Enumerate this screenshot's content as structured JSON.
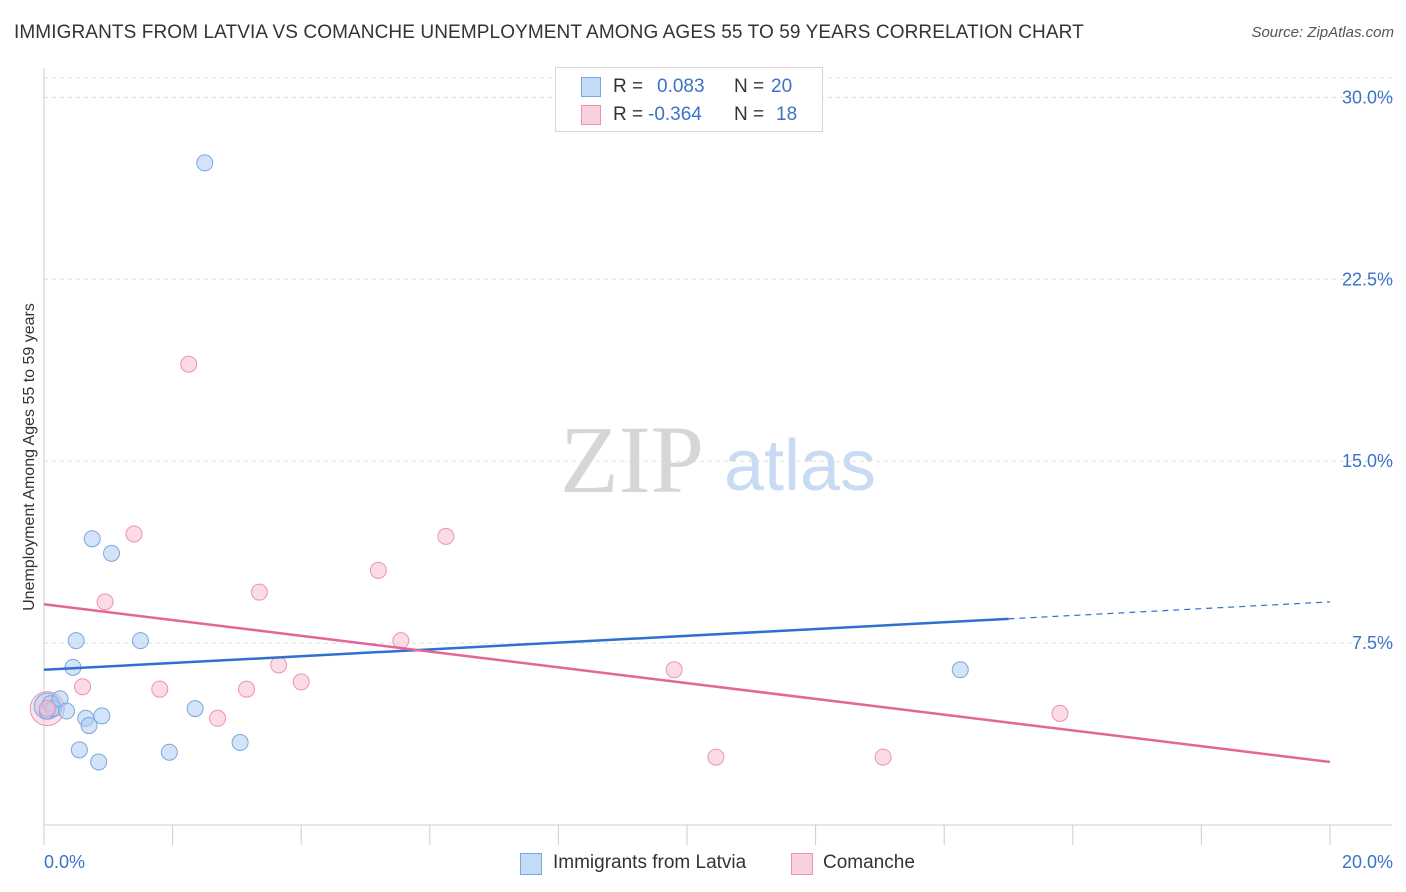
{
  "title": "IMMIGRANTS FROM LATVIA VS COMANCHE UNEMPLOYMENT AMONG AGES 55 TO 59 YEARS CORRELATION CHART",
  "source": "Source: ZipAtlas.com",
  "watermark": {
    "zip": "ZIP",
    "atlas": "atlas"
  },
  "colors": {
    "blue_fill": "#aeccf3",
    "blue_stroke": "#7aa6e0",
    "blue_line": "#2f6fd0",
    "pink_fill": "#f7bfd0",
    "pink_stroke": "#ee92b0",
    "pink_line": "#e4659a",
    "tick_text": "#3a73c8",
    "grid": "#dddddd"
  },
  "legend": {
    "r_label": "R =",
    "n_label": "N =",
    "blue": {
      "r": "0.083",
      "n": "20"
    },
    "pink": {
      "r": "-0.364",
      "n": "18"
    }
  },
  "chart_data": {
    "type": "scatter",
    "title": "IMMIGRANTS FROM LATVIA VS COMANCHE UNEMPLOYMENT AMONG AGES 55 TO 59 YEARS CORRELATION CHART",
    "xlabel": "",
    "ylabel": "Unemployment Among Ages 55 to 59 years",
    "xlim": [
      0,
      20
    ],
    "ylim": [
      0,
      30.8
    ],
    "x_tick_labels": [
      "0.0%",
      "20.0%"
    ],
    "y_ticks": [
      7.5,
      15.0,
      22.5,
      30.0
    ],
    "y_tick_labels": [
      "7.5%",
      "15.0%",
      "22.5%",
      "30.0%"
    ],
    "grid": "horizontal dashed",
    "legend_position": "top-center",
    "series": [
      {
        "name": "Immigrants from Latvia",
        "color": "#aeccf3",
        "points": [
          [
            0.05,
            4.7
          ],
          [
            0.1,
            5.0
          ],
          [
            0.15,
            4.8
          ],
          [
            0.25,
            5.2
          ],
          [
            0.35,
            4.7
          ],
          [
            0.45,
            6.5
          ],
          [
            0.5,
            7.6
          ],
          [
            0.55,
            3.1
          ],
          [
            0.65,
            4.4
          ],
          [
            0.7,
            4.1
          ],
          [
            0.75,
            11.8
          ],
          [
            0.85,
            2.6
          ],
          [
            0.9,
            4.5
          ],
          [
            1.05,
            11.2
          ],
          [
            1.5,
            7.6
          ],
          [
            1.95,
            3.0
          ],
          [
            2.35,
            4.8
          ],
          [
            2.5,
            27.3
          ],
          [
            3.05,
            3.4
          ],
          [
            14.25,
            6.4
          ]
        ],
        "trend": {
          "x": [
            0,
            15
          ],
          "y": [
            6.4,
            8.5
          ],
          "dashed_to_x": 20,
          "dashed_to_y": 9.2
        }
      },
      {
        "name": "Comanche",
        "color": "#f7bfd0",
        "points": [
          [
            0.05,
            4.8
          ],
          [
            0.6,
            5.7
          ],
          [
            0.95,
            9.2
          ],
          [
            1.4,
            12.0
          ],
          [
            1.8,
            5.6
          ],
          [
            2.25,
            19.0
          ],
          [
            2.7,
            4.4
          ],
          [
            3.15,
            5.6
          ],
          [
            3.35,
            9.6
          ],
          [
            3.65,
            6.6
          ],
          [
            4.0,
            5.9
          ],
          [
            5.2,
            10.5
          ],
          [
            5.55,
            7.6
          ],
          [
            6.25,
            11.9
          ],
          [
            9.8,
            6.4
          ],
          [
            10.45,
            2.8
          ],
          [
            13.05,
            2.8
          ],
          [
            15.8,
            4.6
          ]
        ],
        "trend": {
          "x": [
            0,
            20
          ],
          "y": [
            9.1,
            2.6
          ]
        }
      }
    ]
  },
  "bottom_legend": {
    "blue": "Immigrants from Latvia",
    "pink": "Comanche"
  }
}
